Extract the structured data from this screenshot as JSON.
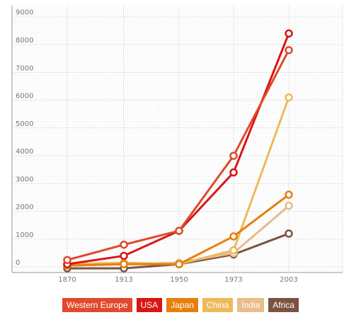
{
  "chart_data": {
    "type": "line",
    "title": "",
    "xlabel": "",
    "ylabel": "",
    "categories": [
      "1870",
      "1913",
      "1950",
      "1973",
      "2003"
    ],
    "ylim": [
      0,
      9000
    ],
    "yticks": [
      "0",
      "1000",
      "2000",
      "3000",
      "4000",
      "5000",
      "6000",
      "7000",
      "8000",
      "9000"
    ],
    "grid": true,
    "legend_position": "bottom",
    "series": [
      {
        "name": "Western Europe",
        "color": "#e0492b",
        "values": [
          250,
          800,
          1300,
          4000,
          7800
        ]
      },
      {
        "name": "USA",
        "color": "#d91515",
        "values": [
          100,
          400,
          1300,
          3400,
          8400
        ]
      },
      {
        "name": "Japan",
        "color": "#e57f0e",
        "values": [
          50,
          100,
          100,
          1100,
          2600
        ]
      },
      {
        "name": "China",
        "color": "#eeb95a",
        "values": [
          100,
          150,
          100,
          600,
          6100
        ]
      },
      {
        "name": "India",
        "color": "#e8bc8c",
        "values": [
          50,
          100,
          150,
          500,
          2200
        ]
      },
      {
        "name": "Africa",
        "color": "#7b5341",
        "values": [
          -50,
          -50,
          100,
          450,
          1200
        ]
      }
    ]
  }
}
